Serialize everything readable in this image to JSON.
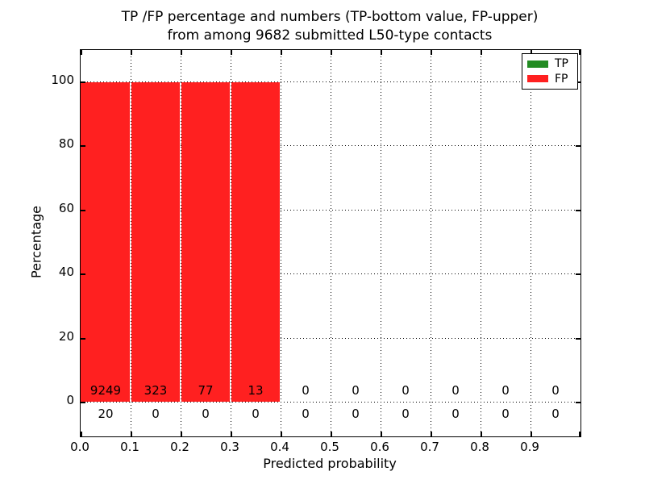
{
  "title": {
    "line1": "TP /FP percentage and numbers (TP-bottom value, FP-upper)",
    "line2": "from among 9682 submitted L50-type contacts"
  },
  "axes": {
    "xlabel": "Predicted probability",
    "ylabel": "Percentage"
  },
  "legend": {
    "items": [
      {
        "label": "TP",
        "color": "#228b22"
      },
      {
        "label": "FP",
        "color": "#ff2020"
      }
    ]
  },
  "colors": {
    "tp": "#228b22",
    "fp": "#ff2020",
    "grid": "#000000",
    "frame": "#000000",
    "background": "#ffffff"
  },
  "chart_data": {
    "type": "bar",
    "title": "TP /FP percentage and numbers (TP-bottom value, FP-upper) from among 9682 submitted L50-type contacts",
    "xlabel": "Predicted probability",
    "ylabel": "Percentage",
    "xlim": [
      0.0,
      1.0
    ],
    "ylim": [
      -11,
      110
    ],
    "xticks": [
      "0.0",
      "0.1",
      "0.2",
      "0.3",
      "0.4",
      "0.5",
      "0.6",
      "0.7",
      "0.8",
      "0.9"
    ],
    "yticks": [
      "0",
      "20",
      "40",
      "60",
      "80",
      "100"
    ],
    "grid": "dotted",
    "legend_position": "upper right",
    "bin_edges": [
      0.0,
      0.1,
      0.2,
      0.3,
      0.4,
      0.5,
      0.6,
      0.7,
      0.8,
      0.9,
      1.0
    ],
    "categories": [
      "0.0-0.1",
      "0.1-0.2",
      "0.2-0.3",
      "0.3-0.4",
      "0.4-0.5",
      "0.5-0.6",
      "0.6-0.7",
      "0.7-0.8",
      "0.8-0.9",
      "0.9-1.0"
    ],
    "series": [
      {
        "name": "TP",
        "color": "#228b22",
        "percent": [
          0,
          0,
          0,
          0,
          0,
          0,
          0,
          0,
          0,
          0
        ],
        "counts": [
          20,
          0,
          0,
          0,
          0,
          0,
          0,
          0,
          0,
          0
        ]
      },
      {
        "name": "FP",
        "color": "#ff2020",
        "percent": [
          100,
          100,
          100,
          100,
          0,
          0,
          0,
          0,
          0,
          0
        ],
        "counts": [
          9249,
          323,
          77,
          13,
          0,
          0,
          0,
          0,
          0,
          0
        ]
      }
    ],
    "total_submitted": 9682
  }
}
